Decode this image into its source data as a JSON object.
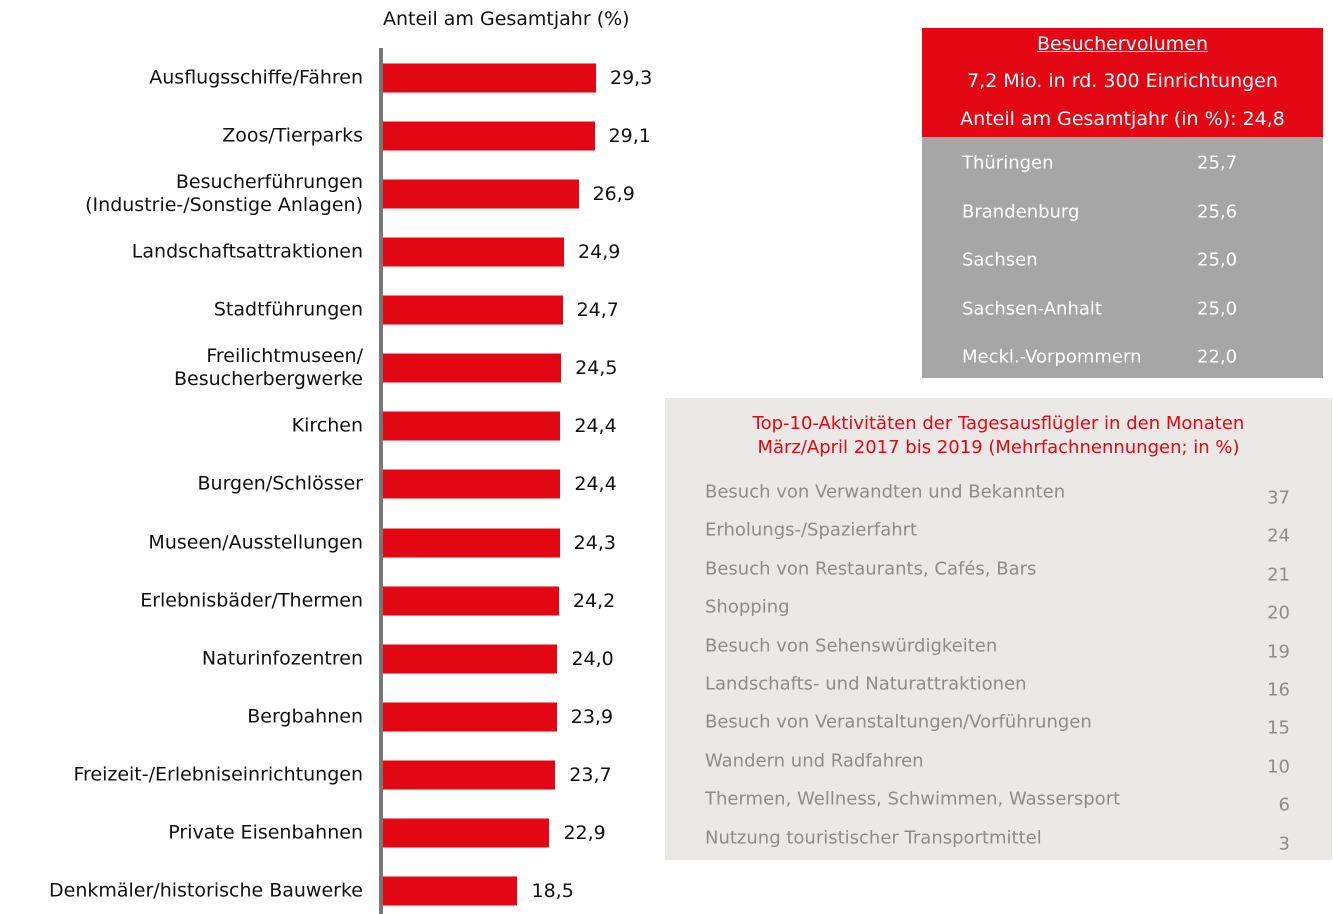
{
  "chart_data": {
    "type": "bar",
    "orientation": "horizontal",
    "title": "Anteil am Gesamtjahr (%)",
    "categories": [
      "Ausflugsschiffe/Fähren",
      "Zoos/Tierparks",
      "Besucherführungen\n(Industrie-/Sonstige Anlagen)",
      "Landschaftsattraktionen",
      "Stadtführungen",
      "Freilichtmuseen/\nBesucherbergwerke",
      "Kirchen",
      "Burgen/Schlösser",
      "Museen/Ausstellungen",
      "Erlebnisbäder/Thermen",
      "Naturinfozentren",
      "Bergbahnen",
      "Freizeit-/Erlebniseinrichtungen",
      "Private Eisenbahnen",
      "Denkmäler/historische Bauwerke"
    ],
    "values": [
      29.3,
      29.1,
      26.9,
      24.9,
      24.7,
      24.5,
      24.4,
      24.4,
      24.3,
      24.2,
      24.0,
      23.9,
      23.7,
      22.9,
      18.5
    ],
    "value_labels": [
      "29,3",
      "29,1",
      "26,9",
      "24,9",
      "24,7",
      "24,5",
      "24,4",
      "24,4",
      "24,3",
      "24,2",
      "24,0",
      "23,9",
      "23,7",
      "22,9",
      "18,5"
    ],
    "color": "#e30613"
  },
  "volume_box": {
    "heading": "Besuchervolumen",
    "line1": "7,2 Mio. in  rd. 300 Einrichtungen",
    "line2": "Anteil am Gesamtjahr (in %): 24,8",
    "rows": [
      [
        "Thüringen",
        "25,7"
      ],
      [
        "Brandenburg",
        "25,6"
      ],
      [
        "Sachsen",
        "25,0"
      ],
      [
        "Sachsen-Anhalt",
        "25,0"
      ],
      [
        "Meckl.-Vorpommern",
        "22,0"
      ]
    ]
  },
  "activities": {
    "title": "Top-10-Aktivitäten der Tagesausflügler in den Monaten\nMärz/April 2017 bis 2019 (Mehrfachnennungen; in %)",
    "rows": [
      [
        "Besuch von Verwandten und Bekannten",
        "37"
      ],
      [
        "Erholungs-/Spazierfahrt",
        "24"
      ],
      [
        "Besuch von Restaurants, Cafés, Bars",
        "21"
      ],
      [
        "Shopping",
        "20"
      ],
      [
        "Besuch von Sehenswürdigkeiten",
        "19"
      ],
      [
        "Landschafts- und Naturattraktionen",
        "16"
      ],
      [
        "Besuch von Veranstaltungen/Vorführungen",
        "15"
      ],
      [
        "Wandern und Radfahren",
        "10"
      ],
      [
        "Thermen, Wellness, Schwimmen, Wassersport",
        "6"
      ],
      [
        "Nutzung touristischer Transportmittel",
        "3"
      ]
    ]
  }
}
